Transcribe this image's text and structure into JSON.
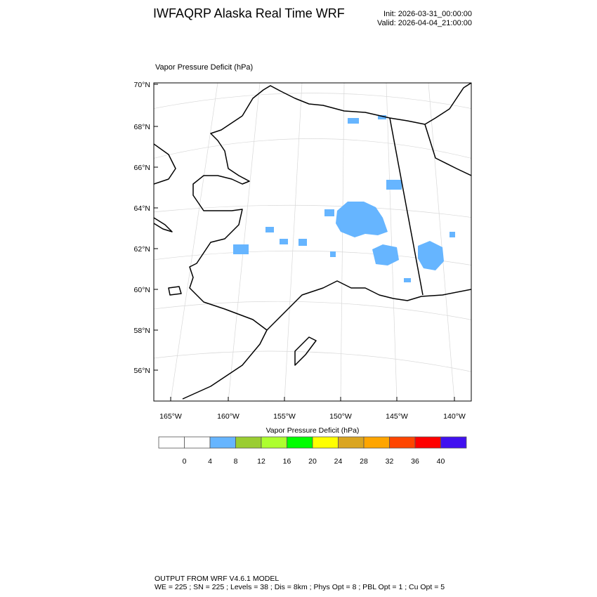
{
  "header": {
    "title": "IWFAQRP Alaska Real Time WRF",
    "init": "Init: 2026-03-31_00:00:00",
    "valid": "Valid: 2026-04-04_21:00:00"
  },
  "map": {
    "field_title": "Vapor Pressure Deficit   (hPa)",
    "lat_labels": [
      "70°N",
      "68°N",
      "66°N",
      "64°N",
      "62°N",
      "60°N",
      "58°N",
      "56°N"
    ],
    "lon_labels": [
      "165°W",
      "160°W",
      "155°W",
      "150°W",
      "145°W",
      "140°W"
    ],
    "coastline_color": "#000000",
    "graticule_color": "#d0d0d0"
  },
  "colorbar": {
    "title": "Vapor Pressure Deficit  (hPa)",
    "colors": [
      "#ffffff",
      "#ffffff",
      "#66b5ff",
      "#9acd32",
      "#adff2f",
      "#00ff00",
      "#ffff00",
      "#daa520",
      "#ffa500",
      "#ff4500",
      "#ff0000",
      "#4010f0"
    ],
    "labels": [
      "0",
      "4",
      "8",
      "12",
      "16",
      "20",
      "24",
      "28",
      "32",
      "36",
      "40"
    ]
  },
  "footer": {
    "line1": "OUTPUT FROM WRF V4.6.1 MODEL",
    "line2": "WE = 225 ; SN = 225 ; Levels = 38 ; Dis = 8km ; Phys Opt = 8 ; PBL Opt = 1 ; Cu Opt = 5"
  }
}
